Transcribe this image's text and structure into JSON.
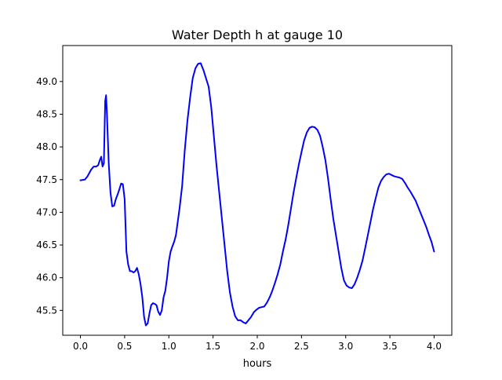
{
  "chart_data": {
    "type": "line",
    "title": "Water Depth h at gauge 10",
    "xlabel": "hours",
    "ylabel": "",
    "xlim": [
      -0.2,
      4.2
    ],
    "ylim": [
      45.12,
      49.55
    ],
    "xticks": [
      0.0,
      0.5,
      1.0,
      1.5,
      2.0,
      2.5,
      3.0,
      3.5,
      4.0
    ],
    "xtick_labels": [
      "0.0",
      "0.5",
      "1.0",
      "1.5",
      "2.0",
      "2.5",
      "3.0",
      "3.5",
      "4.0"
    ],
    "yticks": [
      45.5,
      46.0,
      46.5,
      47.0,
      47.5,
      48.0,
      48.5,
      49.0
    ],
    "ytick_labels": [
      "45.5",
      "46.0",
      "46.5",
      "47.0",
      "47.5",
      "48.0",
      "48.5",
      "49.0"
    ],
    "grid": false,
    "legend": "none",
    "series": [
      {
        "color": "#0000ff",
        "x": [
          0.0,
          0.05,
          0.08,
          0.12,
          0.15,
          0.18,
          0.2,
          0.22,
          0.235,
          0.25,
          0.265,
          0.28,
          0.29,
          0.3,
          0.32,
          0.34,
          0.36,
          0.38,
          0.4,
          0.42,
          0.44,
          0.46,
          0.48,
          0.5,
          0.52,
          0.54,
          0.56,
          0.58,
          0.6,
          0.62,
          0.64,
          0.66,
          0.68,
          0.7,
          0.72,
          0.74,
          0.76,
          0.78,
          0.8,
          0.82,
          0.84,
          0.86,
          0.88,
          0.9,
          0.92,
          0.94,
          0.96,
          0.98,
          1.0,
          1.02,
          1.04,
          1.06,
          1.08,
          1.1,
          1.12,
          1.15,
          1.18,
          1.21,
          1.24,
          1.27,
          1.3,
          1.33,
          1.36,
          1.39,
          1.42,
          1.45,
          1.48,
          1.51,
          1.54,
          1.57,
          1.6,
          1.63,
          1.66,
          1.69,
          1.72,
          1.75,
          1.78,
          1.81,
          1.84,
          1.87,
          1.9,
          1.93,
          1.96,
          1.99,
          2.02,
          2.05,
          2.08,
          2.11,
          2.14,
          2.17,
          2.2,
          2.23,
          2.26,
          2.29,
          2.32,
          2.35,
          2.38,
          2.41,
          2.44,
          2.47,
          2.5,
          2.53,
          2.56,
          2.59,
          2.62,
          2.65,
          2.68,
          2.71,
          2.74,
          2.77,
          2.8,
          2.83,
          2.86,
          2.89,
          2.92,
          2.95,
          2.98,
          3.01,
          3.04,
          3.07,
          3.1,
          3.13,
          3.16,
          3.19,
          3.22,
          3.25,
          3.28,
          3.31,
          3.34,
          3.37,
          3.4,
          3.43,
          3.46,
          3.49,
          3.52,
          3.55,
          3.58,
          3.61,
          3.64,
          3.67,
          3.7,
          3.73,
          3.76,
          3.79,
          3.82,
          3.85,
          3.88,
          3.91,
          3.94,
          3.97,
          4.0
        ],
        "y": [
          47.49,
          47.5,
          47.55,
          47.65,
          47.7,
          47.7,
          47.72,
          47.8,
          47.85,
          47.7,
          47.75,
          48.7,
          48.79,
          48.5,
          47.75,
          47.3,
          47.09,
          47.1,
          47.2,
          47.27,
          47.35,
          47.44,
          47.43,
          47.2,
          46.4,
          46.2,
          46.1,
          46.1,
          46.08,
          46.1,
          46.15,
          46.05,
          45.9,
          45.7,
          45.4,
          45.27,
          45.3,
          45.45,
          45.58,
          45.61,
          45.6,
          45.58,
          45.48,
          45.43,
          45.5,
          45.7,
          45.8,
          46.0,
          46.25,
          46.4,
          46.48,
          46.55,
          46.65,
          46.85,
          47.05,
          47.4,
          47.95,
          48.4,
          48.75,
          49.05,
          49.2,
          49.27,
          49.28,
          49.18,
          49.05,
          48.92,
          48.6,
          48.15,
          47.7,
          47.3,
          46.9,
          46.5,
          46.1,
          45.78,
          45.56,
          45.41,
          45.35,
          45.35,
          45.32,
          45.3,
          45.35,
          45.4,
          45.47,
          45.51,
          45.54,
          45.55,
          45.56,
          45.62,
          45.7,
          45.8,
          45.92,
          46.05,
          46.2,
          46.4,
          46.58,
          46.8,
          47.05,
          47.3,
          47.52,
          47.73,
          47.92,
          48.1,
          48.22,
          48.29,
          48.31,
          48.3,
          48.26,
          48.17,
          48.0,
          47.8,
          47.52,
          47.2,
          46.9,
          46.65,
          46.4,
          46.15,
          45.96,
          45.88,
          45.85,
          45.84,
          45.9,
          46.0,
          46.12,
          46.26,
          46.45,
          46.65,
          46.85,
          47.05,
          47.22,
          47.38,
          47.48,
          47.54,
          47.58,
          47.59,
          47.57,
          47.55,
          47.54,
          47.53,
          47.51,
          47.45,
          47.38,
          47.32,
          47.25,
          47.18,
          47.08,
          46.98,
          46.88,
          46.78,
          46.66,
          46.55,
          46.4
        ]
      }
    ]
  }
}
